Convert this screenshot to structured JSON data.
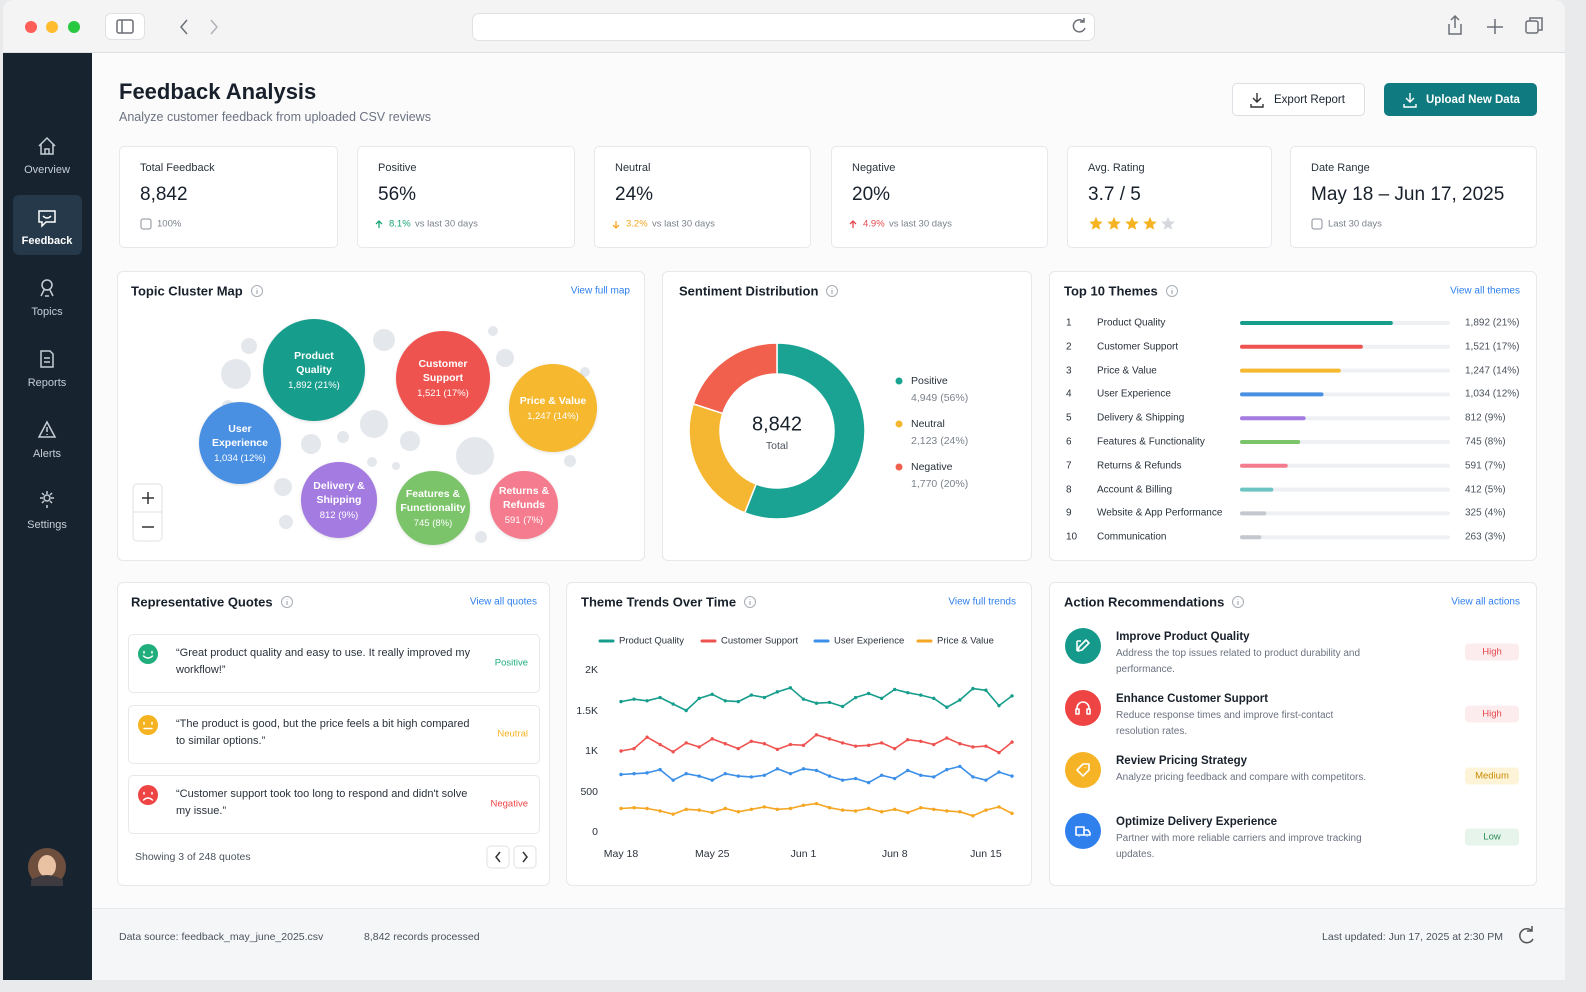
{
  "sidebar": {
    "items": [
      "Overview",
      "Feedback",
      "Topics",
      "Reports",
      "Alerts",
      "Settings"
    ],
    "active": 1
  },
  "header": {
    "title": "Feedback Analysis",
    "subtitle": "Analyze customer feedback from uploaded CSV reviews",
    "buttons": [
      "Export Report",
      "Upload New Data"
    ]
  },
  "kpis": [
    {
      "label": "Total Feedback",
      "value": "8,842",
      "note": "100%"
    },
    {
      "label": "Positive",
      "value": "56%",
      "delta": "8.1%",
      "direction": "up",
      "color": "#17a673",
      "note": "vs last 30 days"
    },
    {
      "label": "Neutral",
      "value": "24%",
      "delta": "3.2%",
      "direction": "down",
      "color": "#f5a623",
      "note": "vs last 30 days"
    },
    {
      "label": "Negative",
      "value": "20%",
      "delta": "4.9%",
      "direction": "up",
      "color": "#e5484d",
      "note": "vs last 30 days"
    },
    {
      "label": "Avg. Rating",
      "value": "3.7 / 5",
      "rating": 3.7,
      "rating_max": 5
    },
    {
      "label": "Date Range",
      "value": "May 18 – Jun 17, 2025",
      "note": "Last 30 days"
    }
  ],
  "chart_data": [
    {
      "type": "bubble",
      "title": "Topic Cluster Map",
      "link": "View full map",
      "categories": [
        "Product Quality",
        "Customer Support",
        "Price & Value",
        "User Experience",
        "Delivery & Shipping",
        "Features & Functionality",
        "Returns & Refunds"
      ],
      "values": [
        1892,
        1521,
        1247,
        1034,
        812,
        745,
        591
      ],
      "value_labels": [
        "1,892 (21%)",
        "1,521 (17%)",
        "1,247 (14%)",
        "1,034 (12%)",
        "812 (9%)",
        "745 (8%)",
        "591 (7%)"
      ],
      "colors": [
        "#169d8c",
        "#ef5350",
        "#f5b82e",
        "#4a90e2",
        "#a47be0",
        "#7cc46a",
        "#f47c8e"
      ]
    },
    {
      "type": "pie",
      "title": "Sentiment Distribution",
      "donut": true,
      "categories": [
        "Positive",
        "Neutral",
        "Negative"
      ],
      "values": [
        4949,
        2123,
        1770
      ],
      "value_labels": [
        "4,949 (56%)",
        "2,123 (24%)",
        "1,770 (20%)"
      ],
      "colors": [
        "#1aa392",
        "#f5b731",
        "#f0604d"
      ],
      "center_label": "8,842",
      "center_sublabel": "Total"
    },
    {
      "type": "bar",
      "orientation": "horizontal",
      "title": "Top 10 Themes",
      "link": "View all themes",
      "ranks": [
        1,
        2,
        3,
        4,
        5,
        6,
        7,
        8,
        9,
        10
      ],
      "categories": [
        "Product Quality",
        "Customer Support",
        "Price & Value",
        "User Experience",
        "Delivery & Shipping",
        "Features & Functionality",
        "Returns & Refunds",
        "Account & Billing",
        "Website & App Performance",
        "Communication"
      ],
      "values": [
        1892,
        1521,
        1247,
        1034,
        812,
        745,
        591,
        412,
        325,
        263
      ],
      "value_labels": [
        "1,892 (21%)",
        "1,521 (17%)",
        "1,247 (14%)",
        "1,034 (12%)",
        "812 (9%)",
        "745 (8%)",
        "591 (7%)",
        "412 (5%)",
        "325 (4%)",
        "263 (3%)"
      ],
      "colors": [
        "#169d8c",
        "#ef5350",
        "#f5b82e",
        "#4a90e2",
        "#a47be0",
        "#7cc46a",
        "#f47c8e",
        "#6cc5c0",
        "#c3c7ce",
        "#c3c7ce"
      ],
      "xlim": [
        0,
        2600
      ]
    },
    {
      "type": "line",
      "title": "Theme Trends Over Time",
      "link": "View full trends",
      "categories": [
        "May 18",
        null,
        null,
        null,
        null,
        null,
        null,
        "May 25",
        null,
        null,
        null,
        null,
        null,
        null,
        "Jun 1",
        null,
        null,
        null,
        null,
        null,
        null,
        "Jun 8",
        null,
        null,
        null,
        null,
        null,
        null,
        "Jun 15",
        null,
        null
      ],
      "series": [
        {
          "name": "Product Quality",
          "color": "#169d8c",
          "values": [
            1610,
            1640,
            1620,
            1660,
            1580,
            1500,
            1650,
            1700,
            1620,
            1610,
            1690,
            1660,
            1730,
            1780,
            1640,
            1590,
            1600,
            1550,
            1660,
            1710,
            1650,
            1760,
            1720,
            1690,
            1650,
            1540,
            1630,
            1770,
            1750,
            1560,
            1680
          ]
        },
        {
          "name": "Customer Support",
          "color": "#ef5350",
          "values": [
            1000,
            1030,
            1170,
            1080,
            990,
            1100,
            1050,
            1150,
            1090,
            1030,
            1120,
            1090,
            1020,
            1080,
            1070,
            1200,
            1150,
            1100,
            1060,
            1070,
            1100,
            1030,
            1140,
            1120,
            1080,
            1160,
            1090,
            1050,
            1060,
            980,
            1110
          ]
        },
        {
          "name": "User Experience",
          "color": "#3b8fe8",
          "values": [
            710,
            720,
            730,
            770,
            640,
            720,
            690,
            640,
            720,
            690,
            680,
            700,
            780,
            720,
            780,
            760,
            690,
            640,
            660,
            610,
            700,
            660,
            760,
            700,
            680,
            770,
            810,
            680,
            640,
            740,
            690
          ]
        },
        {
          "name": "Price & Value",
          "color": "#f5a623",
          "values": [
            290,
            300,
            290,
            260,
            220,
            280,
            270,
            240,
            290,
            250,
            280,
            310,
            280,
            290,
            330,
            350,
            300,
            270,
            260,
            290,
            250,
            280,
            240,
            300,
            280,
            260,
            250,
            200,
            270,
            310,
            230
          ]
        }
      ],
      "ylim": [
        0,
        2000
      ],
      "yticks": [
        0,
        500,
        {
          "value": 1000,
          "label": "1K"
        },
        {
          "value": 1500,
          "label": "1.5K"
        },
        {
          "value": 2000,
          "label": "2K"
        }
      ]
    }
  ],
  "quotes": {
    "title": "Representative Quotes",
    "link": "View all quotes",
    "items": [
      {
        "text": "“Great product quality and easy to use. It really improved my workflow!”",
        "sentiment": "Positive",
        "color": "#1fae7c"
      },
      {
        "text": "“The product is good, but the price feels a bit high compared to similar options.”",
        "sentiment": "Neutral",
        "color": "#f5b321"
      },
      {
        "text": "“Customer support took too long to respond and didn't solve my issue.”",
        "sentiment": "Negative",
        "color": "#ef4444"
      }
    ],
    "footer": "Showing 3 of 248 quotes"
  },
  "actions": {
    "title": "Action Recommendations",
    "link": "View all actions",
    "items": [
      {
        "title": "Improve Product Quality",
        "description": "Address the top issues related to product durability and performance.",
        "priority": "High",
        "color": "#14998a",
        "priority_color": "#e5484d",
        "priority_bg": "#fdecee"
      },
      {
        "title": "Enhance Customer Support",
        "description": "Reduce response times and improve first-contact resolution rates.",
        "priority": "High",
        "color": "#ef4444",
        "priority_color": "#e5484d",
        "priority_bg": "#fdecee"
      },
      {
        "title": "Review Pricing Strategy",
        "description": "Analyze pricing feedback and compare with competitors.",
        "priority": "Medium",
        "color": "#f5b325",
        "priority_color": "#c98a00",
        "priority_bg": "#fdf4d8"
      },
      {
        "title": "Optimize Delivery Experience",
        "description": "Partner with more reliable carriers and improve tracking updates.",
        "priority": "Low",
        "color": "#2f80ed",
        "priority_color": "#2f8f5b",
        "priority_bg": "#e6f4ec"
      }
    ]
  },
  "footer": {
    "source": "Data source: feedback_may_june_2025.csv",
    "records": "8,842 records processed",
    "updated": "Last updated: Jun 17, 2025 at 2:30 PM"
  }
}
